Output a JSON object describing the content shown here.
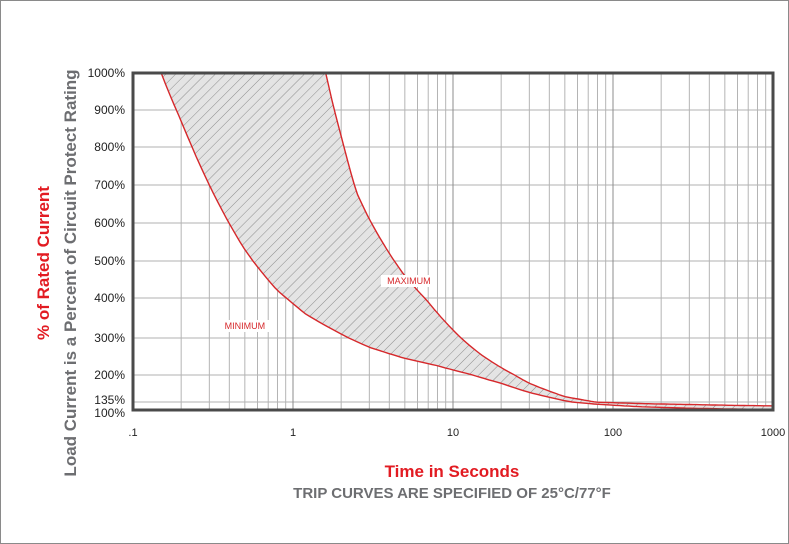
{
  "chart_data": {
    "type": "line",
    "x_scale": "log",
    "xlim": [
      0.1,
      1000
    ],
    "x_ticks": [
      ".1",
      "1",
      "10",
      "100",
      "1000"
    ],
    "ylim": [
      100,
      1000
    ],
    "y_ticks": [
      "100%",
      "135%",
      "200%",
      "300%",
      "400%",
      "500%",
      "600%",
      "700%",
      "800%",
      "900%",
      "1000%"
    ],
    "ylabel_primary": "% of Rated Current",
    "ylabel_secondary": "Load Current is a Percent of Circuit Protect Rating",
    "xlabel": "Time in Seconds",
    "note": "TRIP CURVES ARE SPECIFIED OF 25°C/77°F",
    "grid": true,
    "shaded_region": "between curves (hatched)",
    "series": [
      {
        "name": "MINIMUM",
        "color": "#d6282b",
        "x": [
          0.15,
          0.2,
          0.3,
          0.5,
          0.8,
          1.2,
          2,
          3,
          5,
          8,
          12,
          20,
          30,
          50,
          80,
          150,
          300,
          600,
          1000
        ],
        "y": [
          1000,
          870,
          700,
          530,
          420,
          360,
          310,
          275,
          245,
          225,
          205,
          180,
          158,
          138,
          125,
          114,
          108,
          104,
          102
        ]
      },
      {
        "name": "MAXIMUM",
        "color": "#d6282b",
        "x": [
          1.6,
          2,
          2.5,
          3,
          4,
          5,
          7,
          10,
          15,
          20,
          30,
          50,
          80,
          150,
          300,
          600,
          1000
        ],
        "y": [
          1000,
          830,
          680,
          610,
          520,
          460,
          390,
          320,
          255,
          220,
          180,
          148,
          134,
          128,
          124,
          120,
          118
        ]
      }
    ]
  }
}
